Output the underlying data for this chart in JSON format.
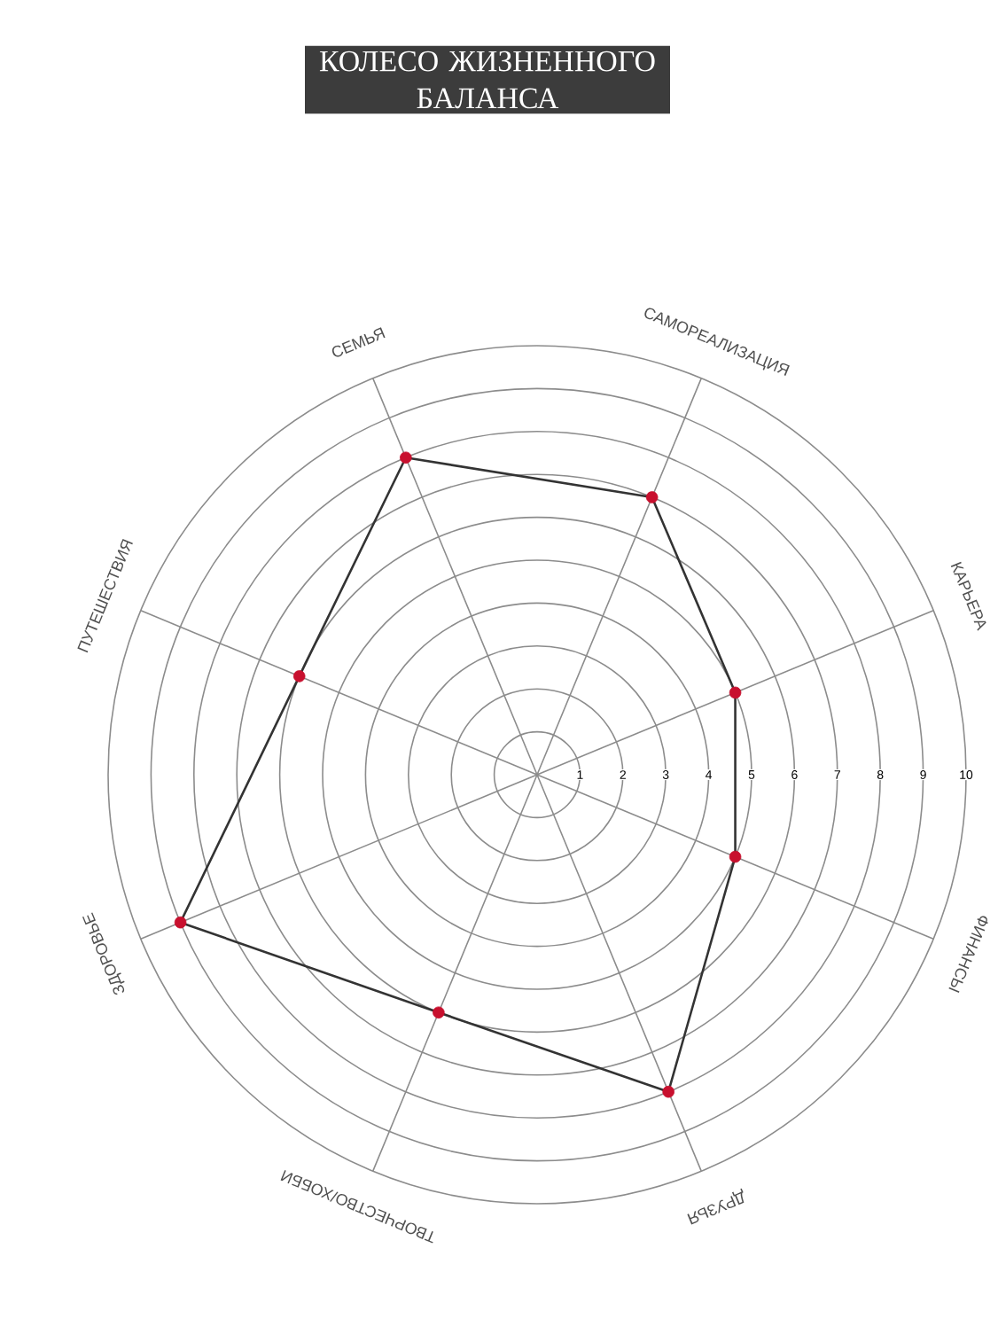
{
  "chart_data": {
    "type": "radar",
    "title": "КОЛЕСО ЖИЗНЕННОГО БАЛАНСА",
    "categories": [
      "САМОРЕАЛИЗАЦИЯ",
      "КАРЬЕРА",
      "ФИНАНСЫ",
      "ДРУЗЬЯ",
      "ТВОРЧЕСТВО/ХОББИ",
      "ЗДОРОВЬЕ",
      "ПУТЕШЕСТВИЯ",
      "СЕМЬЯ"
    ],
    "series": [
      {
        "color": "#333333",
        "colors": [
          "#c8102e",
          "#c8102e",
          "#c8102e",
          "#c8102e",
          "#c8102e",
          "#c8102e",
          "#c8102e",
          "#c8102e"
        ],
        "values": [
          7,
          5,
          5,
          8,
          6,
          9,
          6,
          8
        ]
      }
    ],
    "ylim": [
      0,
      10
    ],
    "yticks": [
      1,
      2,
      3,
      4,
      5,
      6,
      7,
      8,
      9,
      10
    ],
    "grid": true,
    "marker": "circle",
    "line_style": "solid"
  }
}
